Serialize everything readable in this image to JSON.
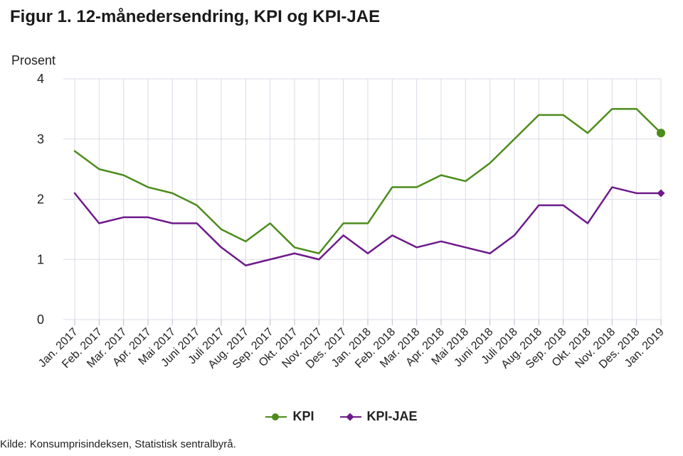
{
  "figure": {
    "title": "Figur 1. 12-månedersendring, KPI og KPI-JAE",
    "source": "Kilde: Konsumprisindeksen, Statistisk sentralbyrå."
  },
  "chart_data": {
    "type": "line",
    "title": "Figur 1. 12-månedersendring, KPI og KPI-JAE",
    "xlabel": "",
    "ylabel": "Prosent",
    "ylim": [
      0,
      4
    ],
    "yticks": [
      0,
      1,
      2,
      3,
      4
    ],
    "grid": true,
    "legend_position": "bottom-center",
    "categories": [
      "Jan. 2017",
      "Feb. 2017",
      "Mar. 2017",
      "Apr. 2017",
      "Mai 2017",
      "Juni 2017",
      "Juli 2017",
      "Aug. 2017",
      "Sep. 2017",
      "Okt. 2017",
      "Nov. 2017",
      "Des. 2017",
      "Jan. 2018",
      "Feb. 2018",
      "Mar. 2018",
      "Apr. 2018",
      "Mai 2018",
      "Juni 2018",
      "Juli 2018",
      "Aug. 2018",
      "Sep. 2018",
      "Okt. 2018",
      "Nov. 2018",
      "Des. 2018",
      "Jan. 2019"
    ],
    "series": [
      {
        "name": "KPI",
        "color": "#4c8c1c",
        "marker": "circle",
        "values": [
          2.8,
          2.5,
          2.4,
          2.2,
          2.1,
          1.9,
          1.5,
          1.3,
          1.6,
          1.2,
          1.1,
          1.6,
          1.6,
          2.2,
          2.2,
          2.4,
          2.3,
          2.6,
          3.0,
          3.4,
          3.4,
          3.1,
          3.5,
          3.5,
          3.1
        ]
      },
      {
        "name": "KPI-JAE",
        "color": "#6e1a8a",
        "marker": "diamond",
        "values": [
          2.1,
          1.6,
          1.7,
          1.7,
          1.6,
          1.6,
          1.2,
          0.9,
          1.0,
          1.1,
          1.0,
          1.4,
          1.1,
          1.4,
          1.2,
          1.3,
          1.2,
          1.1,
          1.4,
          1.9,
          1.9,
          1.6,
          2.2,
          2.1,
          2.1
        ]
      }
    ]
  }
}
